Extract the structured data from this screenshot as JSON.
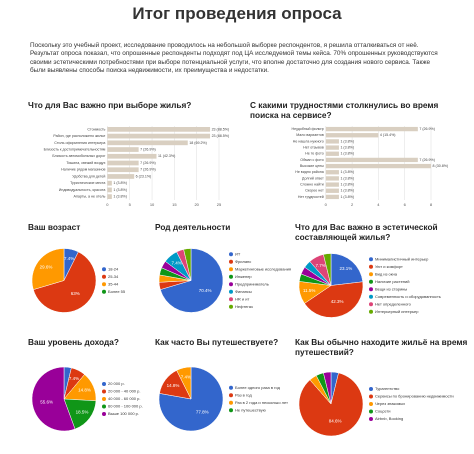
{
  "header": {
    "title": "Итог проведения опроса",
    "intro": "Поскольку это учебный проект, исследование проводилось на небольшой выборке респондентов, я решила отталкиваться от неё. Результат опроса показал, что опрошенные респонденты подходят под ЦА исследуемой темы кейса. 70% опрошенных руководствуются своими эстетическими потребностями при выборе потенциальной услуги, что вполне достаточно для создания нового сервиса. Также были выявлены способы поиска недвижимости, их преимущества и недостатки."
  },
  "chart_data": [
    {
      "type": "bar",
      "orientation": "horizontal",
      "title": "Что для Вас важно при выборе жилья?",
      "color": "#d9cfc1",
      "categories": [
        "Стоимость",
        "Район, где расположено жилье",
        "Стиль оформления интерьера",
        "Близость к достопримечательностям",
        "Близость автомобильных дорог",
        "Тишина, свежий воздух",
        "Наличие рядом магазинов",
        "Удобства для детей",
        "Туристические места",
        "Индивидуальность, красота",
        "Апарты, а не отель"
      ],
      "values": [
        23,
        23,
        18,
        7,
        11,
        7,
        7,
        6,
        1,
        1,
        1
      ],
      "value_labels": [
        "23 (88.5%)",
        "23 (88.5%)",
        "18 (69.2%)",
        "7 (26.9%)",
        "11 (42.3%)",
        "7 (26.9%)",
        "7 (26.9%)",
        "6 (23.1%)",
        "1 (3.8%)",
        "1 (3.8%)",
        "1 (3.8%)"
      ],
      "xlim": [
        0,
        25
      ],
      "xticks": [
        0,
        5,
        10,
        15,
        20,
        25
      ],
      "grid": true
    },
    {
      "type": "bar",
      "orientation": "horizontal",
      "title": "С какими трудностями столкнулись во время поиска на сервисе?",
      "color": "#d9cfc1",
      "categories": [
        "Неудобный фильтр",
        "Мало вариантов",
        "Не нашла нужного",
        "Нет отзывов",
        "Не те фото",
        "Обман с фото",
        "Высокие цены",
        "Не видно района",
        "Долгий ответ",
        "Сложно найти",
        "Скорее нет",
        "Нет трудностей"
      ],
      "values": [
        7,
        4,
        1,
        1,
        1,
        7,
        8,
        1,
        1,
        1,
        1,
        1
      ],
      "value_labels": [
        "7 (26.9%)",
        "4 (15.4%)",
        "1 (3.8%)",
        "1 (3.8%)",
        "1 (3.8%)",
        "7 (26.9%)",
        "8 (30.8%)",
        "1 (3.8%)",
        "1 (3.8%)",
        "1 (3.8%)",
        "1 (3.8%)",
        "1 (3.8%)"
      ],
      "xlim": [
        0,
        8
      ],
      "xticks": [
        0,
        2,
        4,
        6,
        8
      ],
      "grid": true
    },
    {
      "type": "pie",
      "title": "Ваш возраст",
      "categories": [
        "18-24",
        "25-34",
        "35-44",
        "Более 55"
      ],
      "values": [
        7.4,
        63,
        29.6,
        0
      ],
      "value_labels": [
        "7.4%",
        "63%",
        "29.6%",
        null
      ],
      "colors": [
        "#3366cc",
        "#dc3912",
        "#ff9900",
        "#109618"
      ]
    },
    {
      "type": "pie",
      "title": "Род деятельности",
      "categories": [
        "ИТ",
        "Фриланс",
        "Маркетинговые исследования",
        "Инженер",
        "Предприниматель",
        "Финансы",
        "HR и ит",
        "Нефтегаз"
      ],
      "values": [
        70.4,
        3.7,
        3.7,
        3.7,
        3.7,
        7.4,
        3.7,
        3.7
      ],
      "value_labels": [
        "70.4%",
        null,
        null,
        null,
        null,
        "7.4%",
        null,
        null
      ],
      "colors": [
        "#3366cc",
        "#dc3912",
        "#ff9900",
        "#109618",
        "#990099",
        "#0099c6",
        "#dd4477",
        "#66aa00"
      ]
    },
    {
      "type": "pie",
      "title": "Что для Вас важно в эстетической составляющей жилья?",
      "categories": [
        "Минималистичный интерьер",
        "Уют и комфорт",
        "Вид из окна",
        "Наличие растений",
        "Вещи из старины",
        "Современность и оборудованность",
        "Нет определенного",
        "Интерьерный интерьер"
      ],
      "values": [
        23.1,
        42.3,
        11.5,
        3.8,
        3.8,
        3.8,
        7.7,
        3.8
      ],
      "value_labels": [
        "23.1%",
        "42.3%",
        "11.5%",
        null,
        null,
        null,
        "7.7%",
        null
      ],
      "colors": [
        "#3366cc",
        "#dc3912",
        "#ff9900",
        "#109618",
        "#990099",
        "#0099c6",
        "#dd4477",
        "#66aa00"
      ]
    },
    {
      "type": "pie",
      "title": "Ваш уровень дохода?",
      "categories": [
        "20 000 р.",
        "20 000 - 40 000 р.",
        "40 000 - 60 000 р.",
        "60 000 - 100 000 р.",
        "Выше 100 000 р."
      ],
      "values": [
        3.7,
        7.4,
        14.8,
        18.5,
        55.6
      ],
      "value_labels": [
        null,
        "7.4%",
        "14.8%",
        "18.5%",
        "55.6%"
      ],
      "colors": [
        "#3366cc",
        "#dc3912",
        "#ff9900",
        "#109618",
        "#990099"
      ]
    },
    {
      "type": "pie",
      "title": "Как часто Вы путешествуете?",
      "categories": [
        "Более одного раза в год",
        "Раз в год",
        "Раз в 2 года и несколько лет",
        "Не путешествую"
      ],
      "values": [
        77.8,
        14.8,
        7.4,
        0
      ],
      "value_labels": [
        "77.8%",
        "14.8%",
        "7.4%",
        null
      ],
      "colors": [
        "#3366cc",
        "#dc3912",
        "#ff9900",
        "#109618"
      ]
    },
    {
      "type": "pie",
      "title": "Как Вы обычно находите жильё на время путешествий?",
      "categories": [
        "Турагентство",
        "Сервисы по бронированию недвижимости",
        "Через знакомых",
        "Соцсети",
        "Airbnb, Booking"
      ],
      "values": [
        3.8,
        84.6,
        3.8,
        3.8,
        3.8
      ],
      "value_labels": [
        null,
        "84.6%",
        null,
        null,
        null
      ],
      "colors": [
        "#3366cc",
        "#dc3912",
        "#ff9900",
        "#109618",
        "#990099"
      ]
    }
  ]
}
